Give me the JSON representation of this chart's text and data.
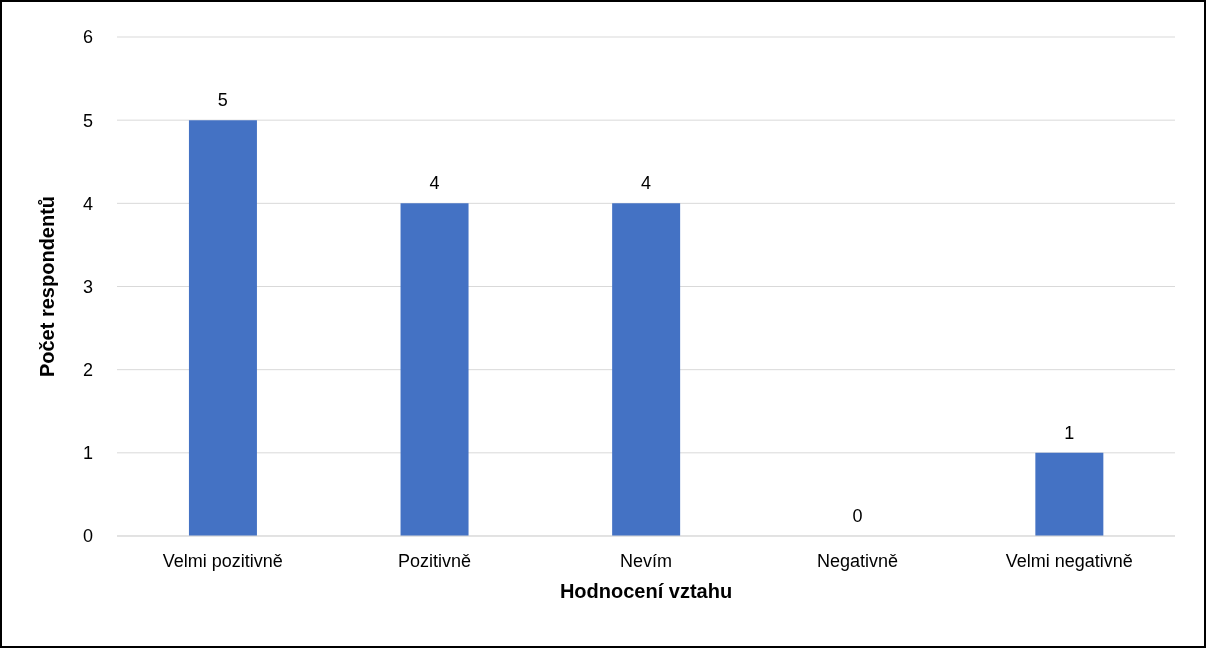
{
  "chart_data": {
    "type": "bar",
    "xlabel": "Hodnocení vztahu",
    "ylabel": "Počet respondentů",
    "categories": [
      "Velmi pozitivně",
      "Pozitivně",
      "Nevím",
      "Negativně",
      "Velmi negativně"
    ],
    "values": [
      5,
      4,
      4,
      0,
      1
    ],
    "color": "#4472c4",
    "ylim": [
      0,
      6
    ],
    "yticks": [
      0,
      1,
      2,
      3,
      4,
      5,
      6
    ],
    "grid": "y",
    "data_labels": true
  }
}
